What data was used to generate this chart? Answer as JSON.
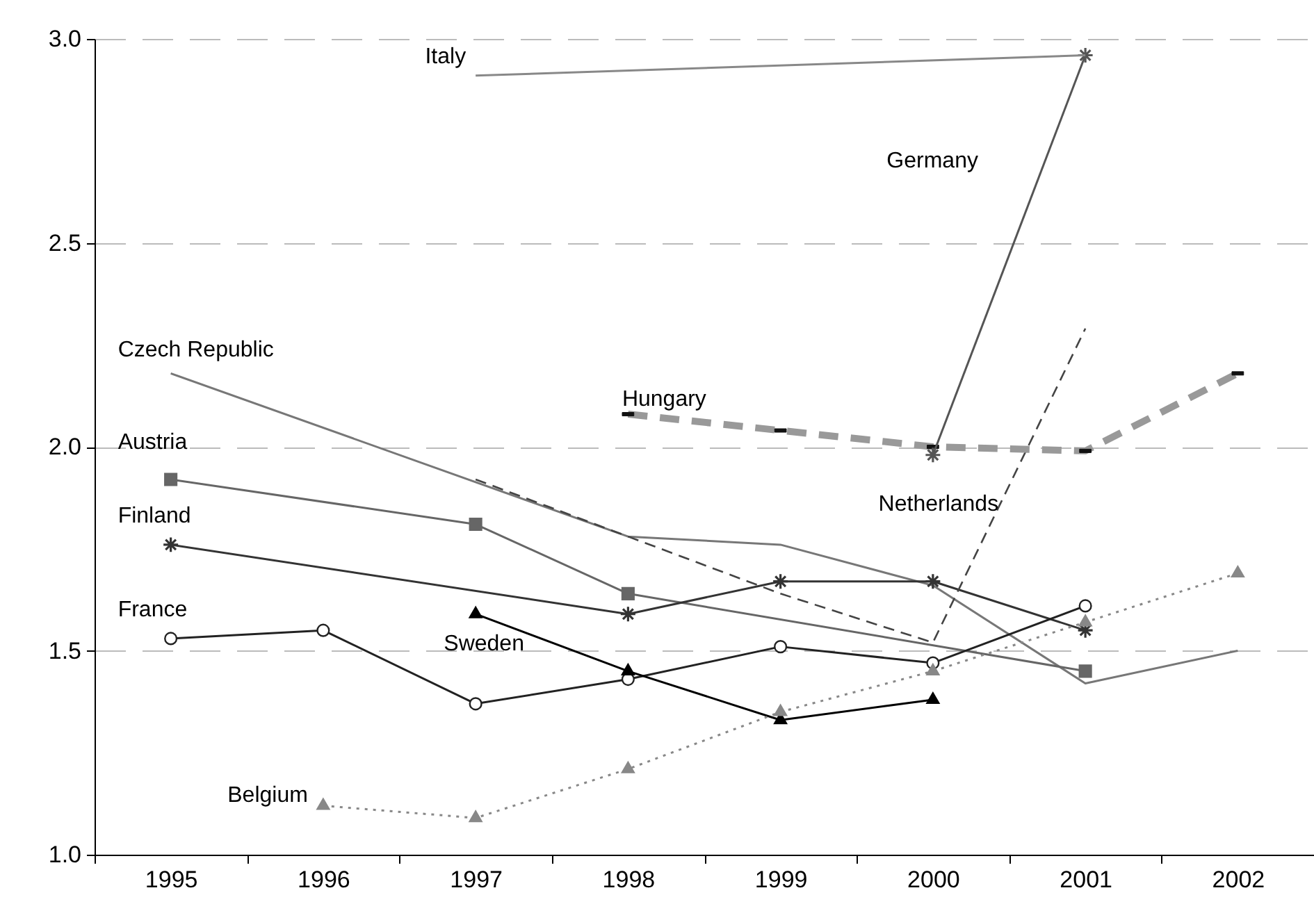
{
  "chart_data": {
    "type": "line",
    "categories": [
      "1995",
      "1996",
      "1997",
      "1998",
      "1999",
      "2000",
      "2001",
      "2002"
    ],
    "ylim": [
      1.0,
      3.0
    ],
    "yticks": [
      {
        "value": 1.0,
        "label": "1.0"
      },
      {
        "value": 1.5,
        "label": "1.5"
      },
      {
        "value": 2.0,
        "label": "2.0"
      },
      {
        "value": 2.5,
        "label": "2.5"
      },
      {
        "value": 3.0,
        "label": "3.0"
      }
    ],
    "grid": "y",
    "series": [
      {
        "name": "Czech Republic",
        "color": "#777777",
        "marker": "none",
        "line_style": "solid",
        "values": [
          2.18,
          null,
          null,
          1.78,
          1.76,
          1.66,
          1.42,
          1.5
        ]
      },
      {
        "name": "Austria",
        "color": "#666666",
        "marker": "square",
        "line_style": "solid",
        "values": [
          1.92,
          null,
          1.81,
          1.64,
          null,
          null,
          1.45,
          null
        ]
      },
      {
        "name": "Finland",
        "color": "#333333",
        "marker": "cross",
        "line_style": "solid",
        "values": [
          1.76,
          null,
          null,
          1.59,
          1.67,
          1.67,
          1.55,
          null
        ]
      },
      {
        "name": "France",
        "color": "#222222",
        "marker": "circle",
        "line_style": "solid",
        "values": [
          1.53,
          1.55,
          1.37,
          1.43,
          1.51,
          1.47,
          1.61,
          null
        ]
      },
      {
        "name": "Sweden",
        "color": "#000000",
        "marker": "triangle",
        "line_style": "solid",
        "values": [
          null,
          null,
          1.59,
          1.45,
          1.33,
          1.38,
          null,
          null
        ]
      },
      {
        "name": "Belgium",
        "color": "#888888",
        "marker": "triangle",
        "line_style": "dotted",
        "values": [
          null,
          1.12,
          1.09,
          1.21,
          1.35,
          1.45,
          1.57,
          1.69
        ]
      },
      {
        "name": "Netherlands",
        "color": "#444444",
        "marker": "none",
        "line_style": "dashed",
        "values": [
          null,
          null,
          1.92,
          1.78,
          1.64,
          1.52,
          2.29,
          null
        ]
      },
      {
        "name": "Hungary",
        "color": "#999999",
        "marker": "square",
        "line_style": "dashed",
        "values": [
          null,
          null,
          null,
          2.08,
          2.04,
          2.0,
          1.99,
          2.18
        ]
      },
      {
        "name": "Germany",
        "color": "#555555",
        "marker": "cross",
        "line_style": "solid",
        "values": [
          null,
          null,
          null,
          null,
          null,
          1.98,
          2.96,
          null
        ]
      },
      {
        "name": "Italy",
        "color": "#888888",
        "marker": "none",
        "line_style": "solid",
        "values": [
          null,
          null,
          2.91,
          null,
          null,
          null,
          2.96,
          null
        ]
      }
    ]
  }
}
